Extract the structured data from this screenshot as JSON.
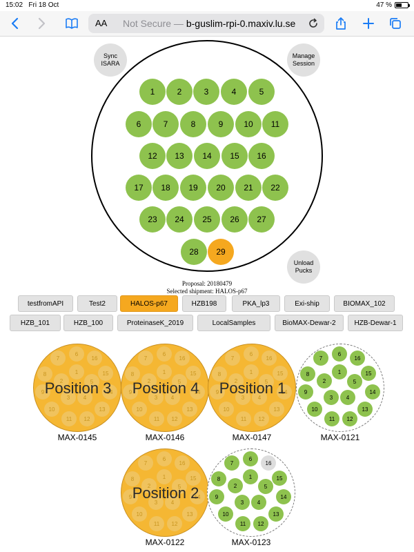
{
  "status_bar": {
    "time": "15:02",
    "date": "Fri 18 Oct",
    "battery": "47 %",
    "battery_level": 0.47
  },
  "browser": {
    "text_size_label": "AA",
    "not_secure": "Not Secure",
    "separator": " — ",
    "host": "b-guslim-rpi-0.maxiv.lu.se",
    "icons": [
      "back-icon",
      "forward-icon",
      "bookmarks-icon",
      "reload-icon",
      "share-icon",
      "new-tab-icon",
      "tabs-icon"
    ]
  },
  "dewar": {
    "sync_button": "Sync ISARA",
    "manage_button": "Manage Session",
    "unload_button": "Unload Pucks",
    "slots": [
      "1",
      "2",
      "3",
      "4",
      "5",
      "6",
      "7",
      "8",
      "9",
      "10",
      "11",
      "12",
      "13",
      "14",
      "15",
      "16",
      "17",
      "18",
      "19",
      "20",
      "21",
      "22",
      "23",
      "24",
      "25",
      "26",
      "27",
      "28",
      "29"
    ],
    "selected_slot": "29"
  },
  "proposal_text": "Proposal: 20180479",
  "shipment_text": "Selected shipment: HALOS-p67",
  "shipments": {
    "row1": [
      "testfromAPI",
      "Test2",
      "HALOS-p67",
      "HZB198",
      "PKA_lp3",
      "Exi-ship",
      "BIOMAX_102"
    ],
    "row2": [
      "HZB_101",
      "HZB_100",
      "ProteinaseK_2019",
      "LocalSamples",
      "BioMAX-Dewar-2",
      "HZB-Dewar-1"
    ],
    "active": "HALOS-p67"
  },
  "pucks": [
    {
      "name": "MAX-0145",
      "position": "Position 3",
      "slots": [
        "1",
        "2",
        "3",
        "4",
        "5",
        "6",
        "7",
        "8",
        "9",
        "10",
        "11",
        "12",
        "13",
        "14",
        "15",
        "16"
      ]
    },
    {
      "name": "MAX-0146",
      "position": "Position 4",
      "slots": [
        "1",
        "2",
        "3",
        "4",
        "5",
        "6",
        "7",
        "8",
        "9",
        "10",
        "11",
        "12",
        "13",
        "14",
        "15",
        "16"
      ]
    },
    {
      "name": "MAX-0147",
      "position": "Position 1",
      "slots": [
        "1",
        "2",
        "3",
        "4",
        "5",
        "6",
        "7",
        "8",
        "9",
        "10",
        "11",
        "12",
        "13",
        "14",
        "15",
        "16"
      ]
    },
    {
      "name": "MAX-0121",
      "position": "",
      "slots": [
        "1",
        "2",
        "3",
        "4",
        "5",
        "6",
        "7",
        "8",
        "9",
        "10",
        "11",
        "12",
        "13",
        "14",
        "15",
        "16"
      ]
    },
    {
      "name": "MAX-0122",
      "position": "Position 2",
      "slots": [
        "1",
        "2",
        "3",
        "4",
        "5",
        "6",
        "7",
        "8",
        "9",
        "10",
        "11",
        "12",
        "13",
        "14",
        "15",
        "16"
      ]
    },
    {
      "name": "MAX-0123",
      "position": "",
      "slots": [
        "1",
        "2",
        "3",
        "4",
        "5",
        "6",
        "7",
        "8",
        "9",
        "10",
        "11",
        "12",
        "13",
        "14",
        "15",
        "16"
      ],
      "empty_slots": [
        "16"
      ]
    }
  ],
  "colors": {
    "filled": "#8ec24e",
    "selected": "#f5a81f",
    "puck_loaded": "#f5b733",
    "tint": "#1a7cf5"
  }
}
